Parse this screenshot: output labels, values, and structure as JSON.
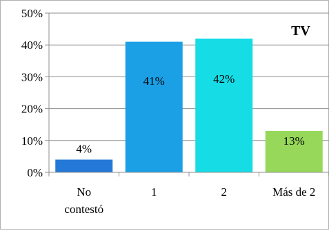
{
  "chart_data": {
    "type": "bar",
    "title": "TV",
    "categories": [
      "No contestó",
      "1",
      "2",
      "Más de 2"
    ],
    "category_lines": [
      [
        "No",
        "contestó"
      ],
      [
        "1"
      ],
      [
        "2"
      ],
      [
        "Más de 2"
      ]
    ],
    "values": [
      4,
      41,
      42,
      13
    ],
    "data_labels": [
      "4%",
      "41%",
      "42%",
      "13%"
    ],
    "colors": [
      "#2479d8",
      "#1ba0e6",
      "#16dce6",
      "#97d85a"
    ],
    "ylim": [
      0,
      50
    ],
    "yticks": [
      "0%",
      "10%",
      "20%",
      "30%",
      "40%",
      "50%"
    ],
    "grid": true,
    "xlabel": "",
    "ylabel": ""
  }
}
